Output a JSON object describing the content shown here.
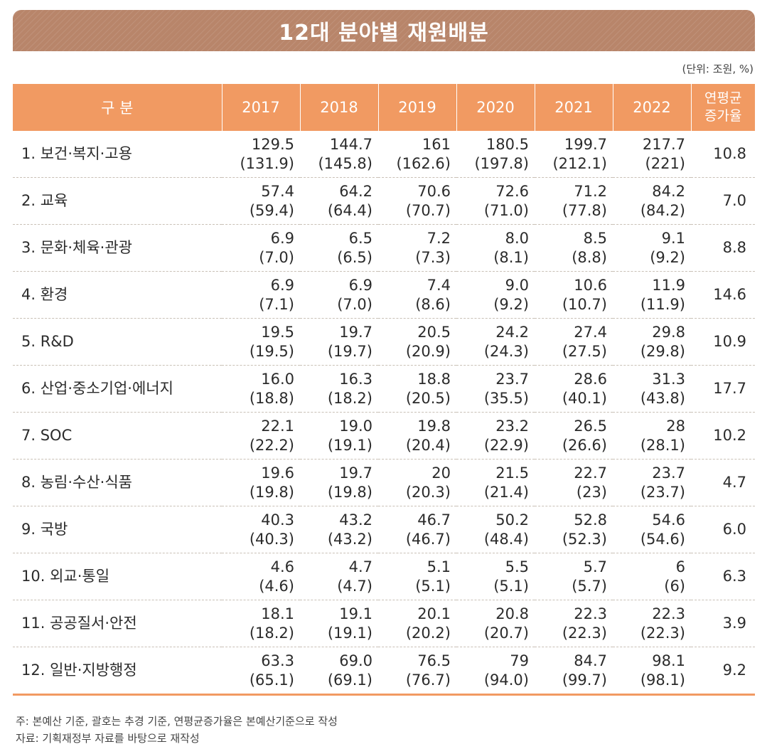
{
  "title": "12대 분야별 재원배분",
  "unit": "(단위: 조원, %)",
  "colors": {
    "header_bg": "#f19a62",
    "banner_bg": "#b8856a",
    "accent": "#f19a62"
  },
  "table": {
    "headers": [
      "구 분",
      "2017",
      "2018",
      "2019",
      "2020",
      "2021",
      "2022",
      "연평균\n증가율"
    ],
    "rows": [
      {
        "category": "1. 보건·복지·고용",
        "values": [
          [
            "129.5",
            "(131.9)"
          ],
          [
            "144.7",
            "(145.8)"
          ],
          [
            "161",
            "(162.6)"
          ],
          [
            "180.5",
            "(197.8)"
          ],
          [
            "199.7",
            "(212.1)"
          ],
          [
            "217.7",
            "(221)"
          ]
        ],
        "avg": "10.8"
      },
      {
        "category": "2. 교육",
        "values": [
          [
            "57.4",
            "(59.4)"
          ],
          [
            "64.2",
            "(64.4)"
          ],
          [
            "70.6",
            "(70.7)"
          ],
          [
            "72.6",
            "(71.0)"
          ],
          [
            "71.2",
            "(77.8)"
          ],
          [
            "84.2",
            "(84.2)"
          ]
        ],
        "avg": "7.0"
      },
      {
        "category": "3. 문화·체육·관광",
        "values": [
          [
            "6.9",
            "(7.0)"
          ],
          [
            "6.5",
            "(6.5)"
          ],
          [
            "7.2",
            "(7.3)"
          ],
          [
            "8.0",
            "(8.1)"
          ],
          [
            "8.5",
            "(8.8)"
          ],
          [
            "9.1",
            "(9.2)"
          ]
        ],
        "avg": "8.8"
      },
      {
        "category": "4. 환경",
        "values": [
          [
            "6.9",
            "(7.1)"
          ],
          [
            "6.9",
            "(7.0)"
          ],
          [
            "7.4",
            "(8.6)"
          ],
          [
            "9.0",
            "(9.2)"
          ],
          [
            "10.6",
            "(10.7)"
          ],
          [
            "11.9",
            "(11.9)"
          ]
        ],
        "avg": "14.6"
      },
      {
        "category": "5. R&D",
        "values": [
          [
            "19.5",
            "(19.5)"
          ],
          [
            "19.7",
            "(19.7)"
          ],
          [
            "20.5",
            "(20.9)"
          ],
          [
            "24.2",
            "(24.3)"
          ],
          [
            "27.4",
            "(27.5)"
          ],
          [
            "29.8",
            "(29.8)"
          ]
        ],
        "avg": "10.9"
      },
      {
        "category": "6. 산업·중소기업·에너지",
        "values": [
          [
            "16.0",
            "(18.8)"
          ],
          [
            "16.3",
            "(18.2)"
          ],
          [
            "18.8",
            "(20.5)"
          ],
          [
            "23.7",
            "(35.5)"
          ],
          [
            "28.6",
            "(40.1)"
          ],
          [
            "31.3",
            "(43.8)"
          ]
        ],
        "avg": "17.7"
      },
      {
        "category": "7. SOC",
        "values": [
          [
            "22.1",
            "(22.2)"
          ],
          [
            "19.0",
            "(19.1)"
          ],
          [
            "19.8",
            "(20.4)"
          ],
          [
            "23.2",
            "(22.9)"
          ],
          [
            "26.5",
            "(26.6)"
          ],
          [
            "28",
            "(28.1)"
          ]
        ],
        "avg": "10.2"
      },
      {
        "category": "8. 농림·수산·식품",
        "values": [
          [
            "19.6",
            "(19.8)"
          ],
          [
            "19.7",
            "(19.8)"
          ],
          [
            "20",
            "(20.3)"
          ],
          [
            "21.5",
            "(21.4)"
          ],
          [
            "22.7",
            "(23)"
          ],
          [
            "23.7",
            "(23.7)"
          ]
        ],
        "avg": "4.7"
      },
      {
        "category": "9. 국방",
        "values": [
          [
            "40.3",
            "(40.3)"
          ],
          [
            "43.2",
            "(43.2)"
          ],
          [
            "46.7",
            "(46.7)"
          ],
          [
            "50.2",
            "(48.4)"
          ],
          [
            "52.8",
            "(52.3)"
          ],
          [
            "54.6",
            "(54.6)"
          ]
        ],
        "avg": "6.0"
      },
      {
        "category": "10. 외교·통일",
        "values": [
          [
            "4.6",
            "(4.6)"
          ],
          [
            "4.7",
            "(4.7)"
          ],
          [
            "5.1",
            "(5.1)"
          ],
          [
            "5.5",
            "(5.1)"
          ],
          [
            "5.7",
            "(5.7)"
          ],
          [
            "6",
            "(6)"
          ]
        ],
        "avg": "6.3"
      },
      {
        "category": "11. 공공질서·안전",
        "values": [
          [
            "18.1",
            "(18.2)"
          ],
          [
            "19.1",
            "(19.1)"
          ],
          [
            "20.1",
            "(20.2)"
          ],
          [
            "20.8",
            "(20.7)"
          ],
          [
            "22.3",
            "(22.3)"
          ],
          [
            "22.3",
            "(22.3)"
          ]
        ],
        "avg": "3.9"
      },
      {
        "category": "12. 일반·지방행정",
        "values": [
          [
            "63.3",
            "(65.1)"
          ],
          [
            "69.0",
            "(69.1)"
          ],
          [
            "76.5",
            "(76.7)"
          ],
          [
            "79",
            "(94.0)"
          ],
          [
            "84.7",
            "(99.7)"
          ],
          [
            "98.1",
            "(98.1)"
          ]
        ],
        "avg": "9.2"
      }
    ]
  },
  "footnotes": [
    "주: 본예산 기준, 괄호는 추경 기준, 연평균증가율은 본예산기준으로 작성",
    "자료: 기획재정부 자료를 바탕으로 재작성"
  ]
}
